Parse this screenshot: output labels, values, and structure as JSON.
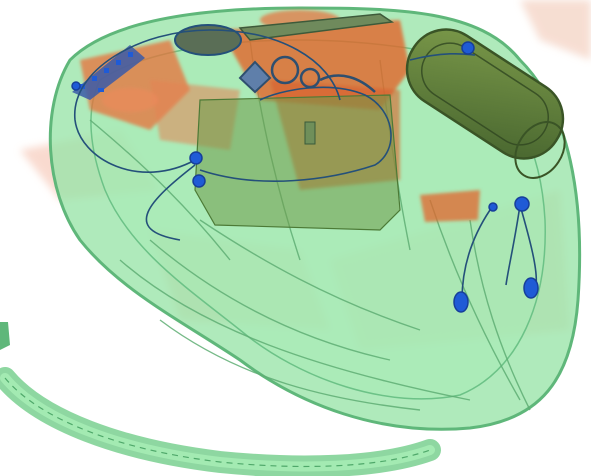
{
  "image": {
    "kind": "x-ray baggage scan",
    "palette": {
      "background": "#ffffff",
      "organic_light": "#f6c7b6",
      "organic_dense": "#e0622a",
      "mixed_green": "#8fe0a0",
      "mixed_green_dark": "#4fa86a",
      "dense_olive": "#5a7a3a",
      "metal_blue": "#1f5bd6",
      "wire": "#24507a"
    },
    "objects": [
      {
        "name": "bag-body",
        "material": "mixed"
      },
      {
        "name": "shoulder-strap",
        "material": "mixed"
      },
      {
        "name": "cylindrical-container",
        "material": "dense"
      },
      {
        "name": "oval-pouch",
        "material": "dense"
      },
      {
        "name": "cable-loops",
        "material": "metal"
      },
      {
        "name": "earphone-buds",
        "material": "metal"
      },
      {
        "name": "key-ring",
        "material": "metal"
      },
      {
        "name": "electronic-board",
        "material": "metal"
      }
    ]
  }
}
